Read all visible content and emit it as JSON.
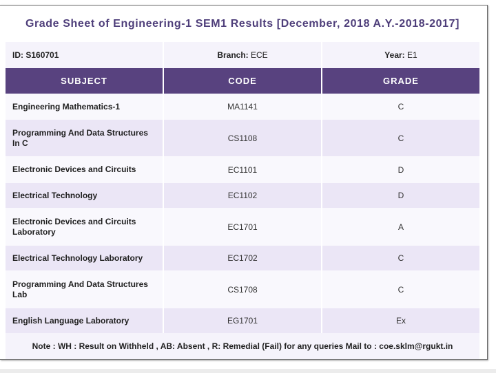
{
  "title": "Grade Sheet of Engineering-1 SEM1 Results [December, 2018 A.Y.-2018-2017]",
  "info": {
    "id_label": "ID:",
    "id_value": "S160701",
    "branch_label": "Branch:",
    "branch_value": "ECE",
    "year_label": "Year:",
    "year_value": "E1"
  },
  "columns": [
    "SUBJECT",
    "CODE",
    "GRADE"
  ],
  "rows": [
    {
      "subject": "Engineering Mathematics-1",
      "code": "MA1141",
      "grade": "C"
    },
    {
      "subject": "Programming And Data Structures In C",
      "code": "CS1108",
      "grade": "C"
    },
    {
      "subject": "Electronic Devices and Circuits",
      "code": "EC1101",
      "grade": "D"
    },
    {
      "subject": "Electrical Technology",
      "code": "EC1102",
      "grade": "D"
    },
    {
      "subject": "Electronic Devices and Circuits Laboratory",
      "code": "EC1701",
      "grade": "A"
    },
    {
      "subject": "Electrical Technology Laboratory",
      "code": "EC1702",
      "grade": "C"
    },
    {
      "subject": "Programming And Data Structures Lab",
      "code": "CS1708",
      "grade": "C"
    },
    {
      "subject": "English Language Laboratory",
      "code": "EG1701",
      "grade": "Ex"
    }
  ],
  "note": "Note : WH : Result on Withheld , AB: Absent , R: Remedial (Fail) for any queries Mail to : coe.sklm@rgukt.in",
  "colors": {
    "header_bg": "#58427f",
    "title": "#4e3e7a",
    "row_alt": "#ebe6f6",
    "row": "#f9f8fd"
  }
}
